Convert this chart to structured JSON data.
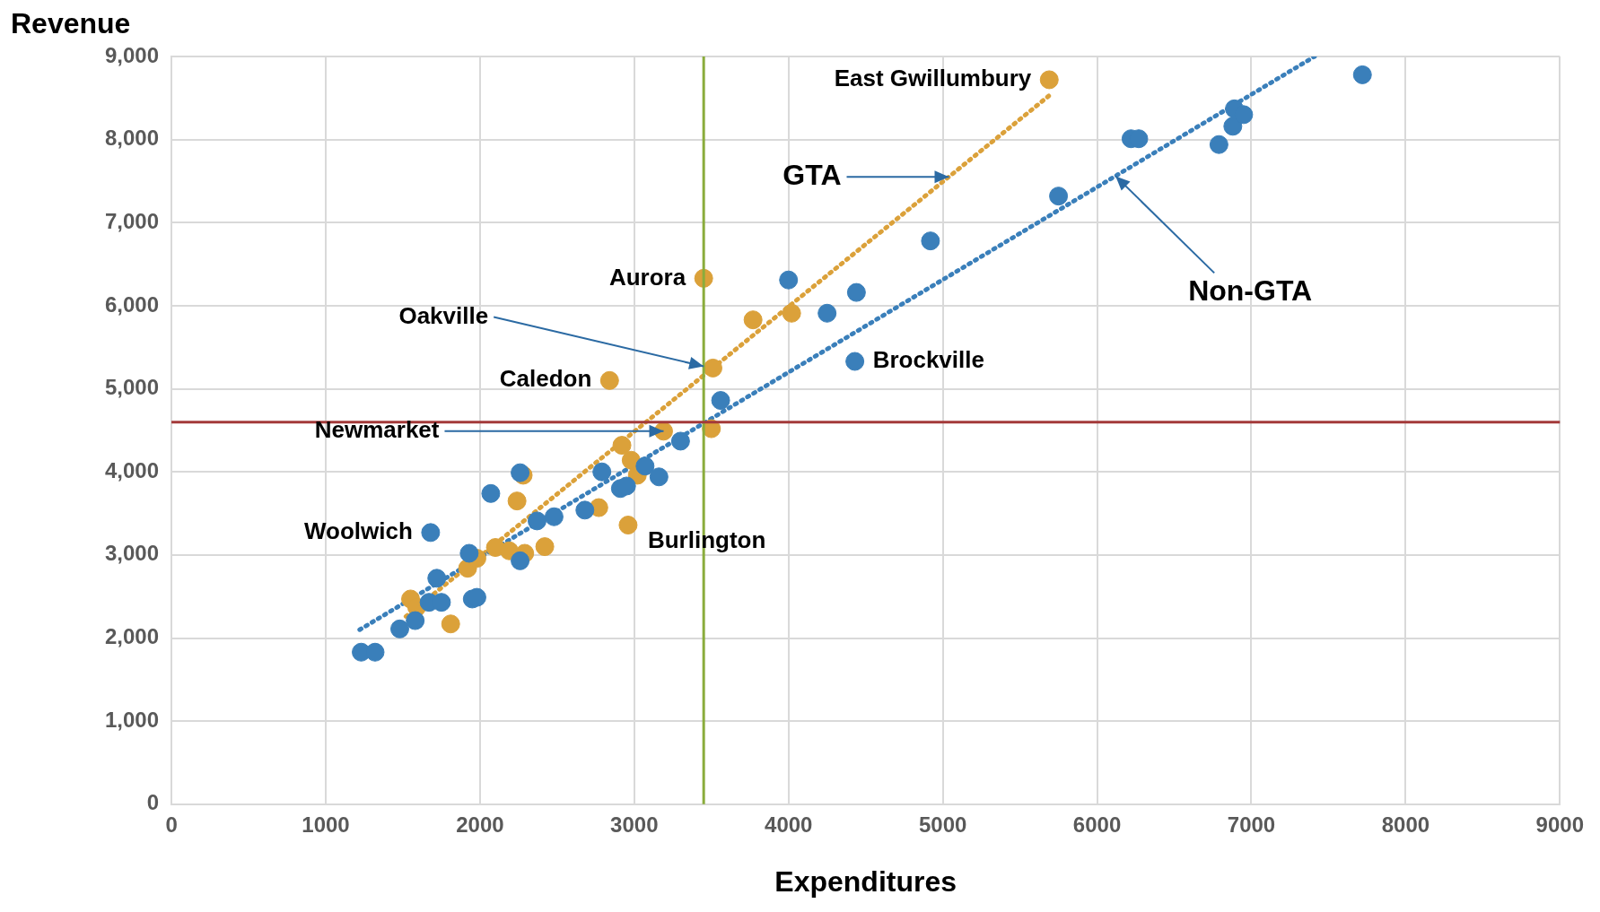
{
  "chart_data": {
    "type": "scatter",
    "xlabel": "Expenditures",
    "ylabel": "Revenue",
    "xlim": [
      0,
      9000
    ],
    "ylim": [
      0,
      9000
    ],
    "xticks": [
      0,
      1000,
      2000,
      3000,
      4000,
      5000,
      6000,
      7000,
      8000,
      9000
    ],
    "yticks": [
      0,
      {
        "value": 1000,
        "label": "1,000"
      },
      {
        "value": 2000,
        "label": "2,000"
      },
      {
        "value": 3000,
        "label": "3,000"
      },
      {
        "value": 4000,
        "label": "4,000"
      },
      {
        "value": 5000,
        "label": "5,000"
      },
      {
        "value": 6000,
        "label": "6,000"
      },
      {
        "value": 7000,
        "label": "7,000"
      },
      {
        "value": 8000,
        "label": "8,000"
      },
      {
        "value": 9000,
        "label": "9,000"
      }
    ],
    "grid": true,
    "legend": false,
    "marker": "circle",
    "series": [
      {
        "color": "#3a7fba",
        "x": [
          1230,
          1320,
          1480,
          1580,
          1670,
          1720,
          1750,
          1680,
          1930,
          1950,
          1980,
          2070,
          2260,
          2260,
          2370,
          2480,
          2680,
          2790,
          2910,
          2950,
          3070,
          3160,
          3300,
          3560,
          4000,
          4250,
          4440,
          4430,
          4920,
          5750,
          6220,
          6270,
          6790,
          6880,
          6890,
          6950,
          7720
        ],
        "values": [
          1830,
          1830,
          2110,
          2210,
          2430,
          2720,
          2430,
          3270,
          3020,
          2470,
          2490,
          3740,
          3990,
          2930,
          3410,
          3460,
          3540,
          4000,
          3800,
          3830,
          4070,
          3940,
          4370,
          4860,
          6310,
          5910,
          6160,
          5330,
          6780,
          7320,
          8010,
          8010,
          7940,
          8160,
          8370,
          8300,
          8780
        ]
      },
      {
        "color": "#dba13a",
        "x": [
          1550,
          1590,
          1810,
          1920,
          1980,
          2100,
          2190,
          2290,
          2420,
          2240,
          2280,
          2770,
          2960,
          2920,
          2980,
          3020,
          3190,
          3500,
          2840,
          3450,
          3510,
          3770,
          4020,
          5690
        ],
        "values": [
          2470,
          2370,
          2170,
          2840,
          2960,
          3090,
          3050,
          3020,
          3100,
          3650,
          3960,
          3570,
          3360,
          4320,
          4140,
          3960,
          4490,
          4520,
          5100,
          6330,
          5250,
          5830,
          5910,
          8720
        ]
      },
      {
        "type": "line",
        "color": "#3a7fba",
        "line_style": "dotted",
        "marker": "none",
        "x": [
          1220,
          7410
        ],
        "values": [
          2100,
          9000
        ]
      },
      {
        "type": "line",
        "color": "#dba13a",
        "line_style": "dotted",
        "marker": "none",
        "x": [
          1520,
          5710
        ],
        "values": [
          2260,
          8560
        ]
      }
    ],
    "ref_lines": [
      {
        "axis": "x",
        "value": 3450,
        "color": "#8aac3c"
      },
      {
        "axis": "y",
        "value": 4600,
        "color": "#a33a3a"
      }
    ],
    "annotations": [
      {
        "text": "East Gwillumbury",
        "x": 5690,
        "y": 8720
      },
      {
        "text": "GTA",
        "x": 5040,
        "y": 7550
      },
      {
        "text": "Non-GTA",
        "x": 6120,
        "y": 7560
      },
      {
        "text": "Aurora",
        "x": 3450,
        "y": 6330
      },
      {
        "text": "Oakville",
        "x": 3450,
        "y": 5270
      },
      {
        "text": "Caledon",
        "x": 2840,
        "y": 5100
      },
      {
        "text": "Newmarket",
        "x": 3190,
        "y": 4490
      },
      {
        "text": "Woolwich",
        "x": 1680,
        "y": 3270
      },
      {
        "text": "Burlington",
        "x": 2960,
        "y": 3360
      },
      {
        "text": "Brockville",
        "x": 4430,
        "y": 5330
      }
    ]
  }
}
